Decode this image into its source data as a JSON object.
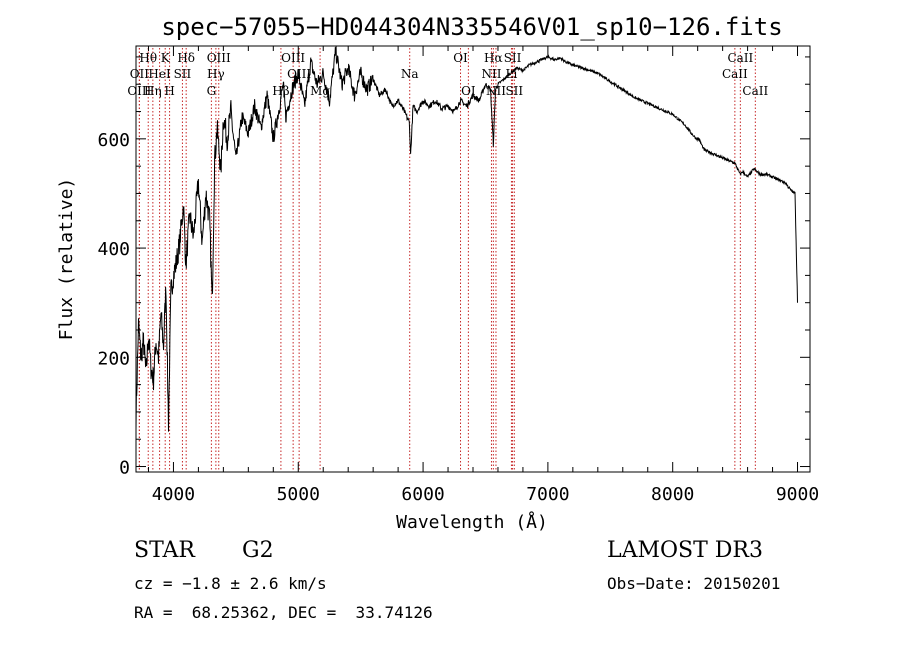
{
  "chart_data": {
    "type": "line",
    "title": "spec−57055−HD044304N335546V01_sp10−126.fits",
    "xlabel": "Wavelength (Å)",
    "ylabel": "Flux (relative)",
    "xlim": [
      3700,
      9100
    ],
    "ylim": [
      -10,
      770
    ],
    "xticks": [
      4000,
      5000,
      6000,
      7000,
      8000,
      9000
    ],
    "yticks": [
      0,
      200,
      400,
      600
    ],
    "grid": false,
    "series": [
      {
        "name": "flux",
        "x": [
          3700,
          3720,
          3740,
          3760,
          3780,
          3800,
          3820,
          3840,
          3860,
          3880,
          3900,
          3920,
          3940,
          3960,
          3980,
          4000,
          4020,
          4050,
          4080,
          4100,
          4130,
          4160,
          4200,
          4230,
          4260,
          4290,
          4310,
          4330,
          4350,
          4380,
          4400,
          4430,
          4460,
          4500,
          4550,
          4600,
          4650,
          4700,
          4750,
          4800,
          4850,
          4880,
          4900,
          4950,
          5000,
          5050,
          5100,
          5150,
          5200,
          5250,
          5300,
          5350,
          5400,
          5450,
          5500,
          5550,
          5600,
          5650,
          5700,
          5750,
          5800,
          5850,
          5890,
          5900,
          5920,
          5950,
          6000,
          6050,
          6100,
          6150,
          6200,
          6250,
          6300,
          6350,
          6400,
          6450,
          6500,
          6540,
          6563,
          6580,
          6600,
          6650,
          6700,
          6750,
          6800,
          6850,
          6900,
          6950,
          7000,
          7050,
          7100,
          7150,
          7200,
          7300,
          7400,
          7500,
          7600,
          7700,
          7800,
          7900,
          8000,
          8100,
          8150,
          8190,
          8210,
          8250,
          8300,
          8400,
          8500,
          8540,
          8560,
          8600,
          8650,
          8700,
          8750,
          8800,
          8850,
          8900,
          8950,
          8980,
          9000
        ],
        "y": [
          90,
          260,
          200,
          230,
          170,
          240,
          180,
          160,
          230,
          200,
          280,
          220,
          330,
          80,
          320,
          350,
          370,
          410,
          480,
          370,
          460,
          420,
          520,
          410,
          500,
          450,
          300,
          560,
          620,
          540,
          640,
          600,
          650,
          560,
          640,
          610,
          660,
          620,
          680,
          600,
          660,
          700,
          640,
          690,
          720,
          660,
          740,
          700,
          720,
          670,
          760,
          700,
          730,
          680,
          720,
          690,
          710,
          680,
          690,
          660,
          670,
          650,
          630,
          570,
          660,
          650,
          670,
          660,
          670,
          655,
          660,
          650,
          670,
          660,
          680,
          670,
          700,
          690,
          590,
          690,
          700,
          710,
          720,
          730,
          725,
          735,
          740,
          745,
          750,
          745,
          748,
          740,
          735,
          728,
          720,
          705,
          690,
          675,
          665,
          655,
          645,
          625,
          610,
          600,
          600,
          580,
          575,
          565,
          555,
          535,
          540,
          530,
          545,
          535,
          535,
          530,
          525,
          520,
          505,
          500,
          300
        ]
      }
    ],
    "lines": [
      {
        "label": "Hθ",
        "wavelength": 3798,
        "row": 1
      },
      {
        "label": "OII",
        "wavelength": 3727,
        "row": 2
      },
      {
        "label": "OIII",
        "wavelength": 3727,
        "row": 3
      },
      {
        "label": "HeI",
        "wavelength": 3889,
        "row": 2
      },
      {
        "label": "Hη",
        "wavelength": 3835,
        "row": 3
      },
      {
        "label": "K",
        "wavelength": 3934,
        "row": 1
      },
      {
        "label": "H",
        "wavelength": 3969,
        "row": 3
      },
      {
        "label": "SII",
        "wavelength": 4072,
        "row": 2
      },
      {
        "label": "Hδ",
        "wavelength": 4102,
        "row": 1
      },
      {
        "label": "OIII",
        "wavelength": 4363,
        "row": 1
      },
      {
        "label": "Hγ",
        "wavelength": 4340,
        "row": 2
      },
      {
        "label": "G",
        "wavelength": 4304,
        "row": 3
      },
      {
        "label": "Hβ",
        "wavelength": 4861,
        "row": 3
      },
      {
        "label": "OIII",
        "wavelength": 4959,
        "row": 1
      },
      {
        "label": "OIII",
        "wavelength": 5007,
        "row": 2
      },
      {
        "label": "Mg",
        "wavelength": 5175,
        "row": 3
      },
      {
        "label": "Na",
        "wavelength": 5893,
        "row": 2
      },
      {
        "label": "OI",
        "wavelength": 6300,
        "row": 1
      },
      {
        "label": "OI",
        "wavelength": 6363,
        "row": 3
      },
      {
        "label": "Hα",
        "wavelength": 6563,
        "row": 1
      },
      {
        "label": "NII",
        "wavelength": 6548,
        "row": 2
      },
      {
        "label": "NII",
        "wavelength": 6584,
        "row": 3
      },
      {
        "label": "SII",
        "wavelength": 6717,
        "row": 1
      },
      {
        "label": "Li",
        "wavelength": 6708,
        "row": 2
      },
      {
        "label": "SII",
        "wavelength": 6731,
        "row": 3
      },
      {
        "label": "CaII",
        "wavelength": 8542,
        "row": 1
      },
      {
        "label": "CaII",
        "wavelength": 8498,
        "row": 2
      },
      {
        "label": "CaII",
        "wavelength": 8662,
        "row": 3
      }
    ]
  },
  "info": {
    "object_class": "STAR",
    "subclass": "G2",
    "survey": "LAMOST DR3",
    "redshift": "cz = −1.8 ± 2.6 km/s",
    "obs_date": "Obs−Date: 20150201",
    "coords": "RA =  68.25362, DEC =  33.74126"
  }
}
